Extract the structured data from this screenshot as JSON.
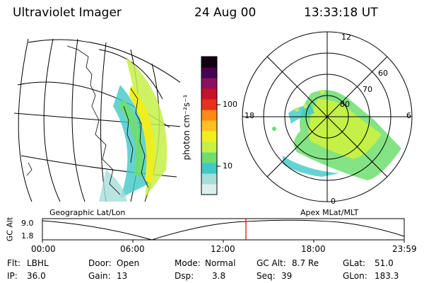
{
  "header": {
    "instrument": "Ultraviolet Imager",
    "date": "24 Aug 00",
    "time": "13:33:18 UT"
  },
  "colorbar": {
    "label": "photon cm⁻²s⁻¹",
    "ticks": [
      "100",
      "10"
    ],
    "colors": [
      "#d9f0ef",
      "#a6ddd9",
      "#40c8c8",
      "#6ede6e",
      "#c4f048",
      "#f0ef1e",
      "#ffc020",
      "#ff8a10",
      "#e8301a",
      "#c8102a",
      "#8c1060",
      "#4a0050",
      "#100010"
    ]
  },
  "geo_panel": {
    "caption": "Geographic Lat/Lon"
  },
  "polar_panel": {
    "caption": "Apex MLat/MLT",
    "mlt_labels": [
      "12",
      "18",
      "6",
      "0"
    ],
    "lat_labels": [
      "60",
      "70",
      "80"
    ]
  },
  "altitude_plot": {
    "axis_label": "GC Alt",
    "y_ticks": [
      "9.0",
      "1.8"
    ],
    "x_ticks": [
      "00:00",
      "06:00",
      "12:00",
      "18:00",
      "23:59"
    ],
    "current_time_color": "#e00000"
  },
  "info": {
    "filter_label": "Flt:",
    "filter_value": "LBHL",
    "ip_label": "IP:",
    "ip_value": "36.0",
    "door_label": "Door:",
    "door_value": "Open",
    "gain_label": "Gain:",
    "gain_value": "13",
    "mode_label": "Mode:",
    "mode_value": "Normal",
    "dsp_label": "Dsp:",
    "dsp_value": "3.8",
    "gcalt_label": "GC Alt:",
    "gcalt_value": "8.7 Re",
    "seq_label": "Seq:",
    "seq_value": "39",
    "glat_label": "GLat:",
    "glat_value": "51.0",
    "glon_label": "GLon:",
    "glon_value": "183.3"
  }
}
